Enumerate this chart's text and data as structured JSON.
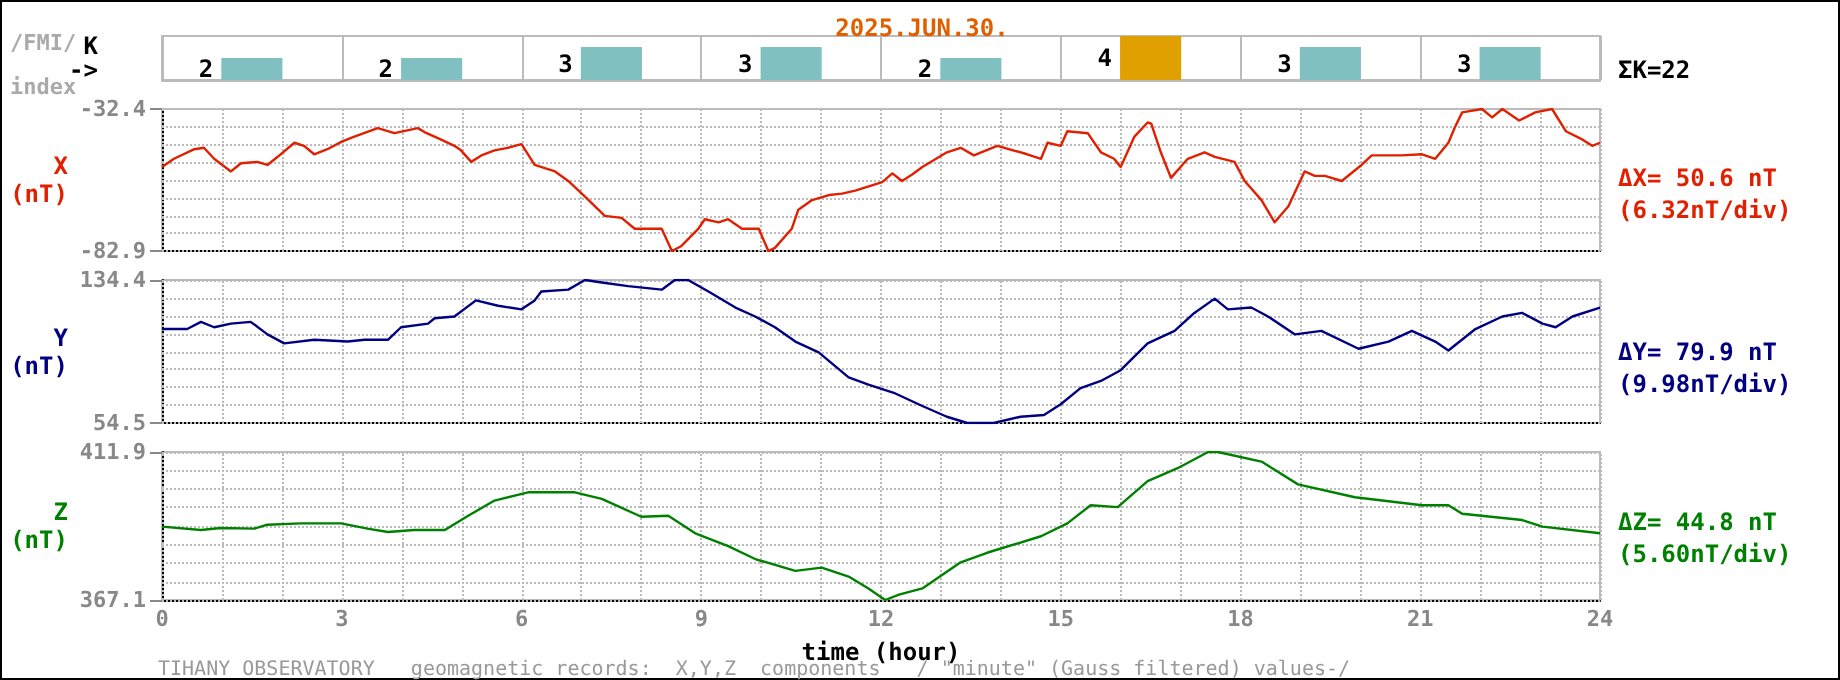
{
  "chart_data": [
    {
      "type": "bar",
      "title": "2025.JUN.30.",
      "ylabel": "K ->",
      "annotations": [
        "/FMI/",
        "index",
        "ΣK=22"
      ],
      "categories": [
        null,
        null,
        null,
        null,
        null,
        null,
        null,
        null
      ],
      "values": [
        2,
        2,
        3,
        3,
        2,
        4,
        3,
        3
      ],
      "colors": [
        "#80c0c0",
        "#80c0c0",
        "#80c0c0",
        "#80c0c0",
        "#80c0c0",
        "#e0a000",
        "#80c0c0",
        "#80c0c0"
      ],
      "data_labels": true,
      "grid": "x",
      "tick_labels": false
    },
    {
      "type": "line",
      "ylabel": "X (nT)",
      "annotations": [
        "ΔX= 50.6 nT",
        "(6.32nT/div)"
      ],
      "xlim": [
        0,
        24
      ],
      "ylim": [
        -82.9,
        -32.4
      ],
      "xticks": [
        0,
        {
          "value": 1,
          "label": null
        },
        {
          "value": 2,
          "label": null
        },
        3,
        {
          "value": 4,
          "label": null
        },
        {
          "value": 5,
          "label": null
        },
        6,
        {
          "value": 7,
          "label": null
        },
        {
          "value": 8,
          "label": null
        },
        9,
        {
          "value": 10,
          "label": null
        },
        {
          "value": 11,
          "label": null
        },
        12,
        {
          "value": 13,
          "label": null
        },
        {
          "value": 14,
          "label": null
        },
        15,
        {
          "value": 16,
          "label": null
        },
        {
          "value": 17,
          "label": null
        },
        18,
        {
          "value": 19,
          "label": null
        },
        {
          "value": 20,
          "label": null
        },
        21,
        {
          "value": 22,
          "label": null
        },
        {
          "value": 23,
          "label": null
        },
        24
      ],
      "yticks": [
        -82.9,
        {
          "value": -76.59,
          "label": null
        },
        {
          "value": -70.28,
          "label": null
        },
        {
          "value": -63.96,
          "label": null
        },
        {
          "value": -57.65,
          "label": null
        },
        {
          "value": -51.34,
          "label": null
        },
        {
          "value": -45.03,
          "label": null
        },
        {
          "value": -38.71,
          "label": null
        },
        -32.4
      ],
      "grid": true,
      "tick_labels": "y",
      "series": [
        {
          "color": "#e02000",
          "x": [
            0,
            0.2,
            0.54,
            0.7,
            0.87,
            1.15,
            1.32,
            1.59,
            1.76,
            1.93,
            2.21,
            2.37,
            2.54,
            2.76,
            3,
            3.21,
            3.6,
            3.88,
            4.27,
            4.38,
            4.66,
            4.88,
            4.99,
            5.16,
            5.33,
            5.55,
            5.77,
            6,
            6.22,
            6.56,
            6.78,
            7.06,
            7.39,
            7.67,
            7.89,
            8.12,
            8.34,
            8.51,
            8.67,
            8.95,
            9.06,
            9.29,
            9.45,
            9.68,
            9.96,
            10.12,
            10.23,
            10.51,
            10.62,
            10.85,
            11.13,
            11.35,
            11.57,
            12.02,
            12.19,
            12.35,
            12.52,
            12.69,
            13.1,
            13.33,
            13.55,
            13.94,
            14.44,
            14.67,
            14.78,
            15,
            15.11,
            15.45,
            15.67,
            15.89,
            16,
            16.23,
            16.45,
            16.51,
            16.67,
            16.84,
            17.12,
            17.4,
            17.57,
            17.9,
            18.07,
            18.35,
            18.57,
            18.8,
            19.07,
            19.24,
            19.41,
            19.69,
            20.02,
            20.19,
            20.69,
            21.03,
            21.25,
            21.47,
            21.58,
            21.7,
            22.03,
            22.2,
            22.37,
            22.65,
            22.92,
            23.2,
            23.43,
            23.71,
            23.87,
            24
          ],
          "values": [
            -53,
            -50.1,
            -46.7,
            -46.2,
            -50.1,
            -54.6,
            -51.7,
            -51.2,
            -52.3,
            -49.4,
            -44.4,
            -45.5,
            -48.5,
            -46.7,
            -44,
            -42.2,
            -39.2,
            -41,
            -39.2,
            -40.6,
            -43.3,
            -45.5,
            -47.1,
            -51.2,
            -48.9,
            -47.1,
            -46.2,
            -44.9,
            -52.3,
            -54.6,
            -58,
            -63.6,
            -70.4,
            -71.1,
            -75,
            -75,
            -75,
            -82.9,
            -81.1,
            -75,
            -71.6,
            -72.7,
            -71.6,
            -75,
            -75,
            -82.9,
            -81.8,
            -75,
            -68.2,
            -64.8,
            -63,
            -62.5,
            -61.4,
            -58.4,
            -55.3,
            -58,
            -55.7,
            -53,
            -47.8,
            -46.2,
            -48.9,
            -45.5,
            -48.5,
            -50.1,
            -44.4,
            -45.5,
            -40.3,
            -41,
            -47.8,
            -50.1,
            -53,
            -42.2,
            -37.2,
            -37.6,
            -47.8,
            -56.9,
            -50.1,
            -47.8,
            -49.4,
            -51.2,
            -58,
            -64.8,
            -72.7,
            -67,
            -54.6,
            -56.2,
            -56.2,
            -58,
            -52.3,
            -48.9,
            -48.9,
            -48.5,
            -50.1,
            -44.4,
            -38.8,
            -33.6,
            -32.4,
            -35.4,
            -32.4,
            -36.5,
            -33.6,
            -32.4,
            -40.3,
            -43.3,
            -45.5,
            -44.4
          ]
        }
      ]
    },
    {
      "type": "line",
      "ylabel": "Y (nT)",
      "annotations": [
        "ΔY= 79.9 nT",
        "(9.98nT/div)"
      ],
      "xlim": [
        0,
        24
      ],
      "ylim": [
        54.5,
        134.4
      ],
      "xticks": [
        0,
        {
          "value": 1,
          "label": null
        },
        {
          "value": 2,
          "label": null
        },
        3,
        {
          "value": 4,
          "label": null
        },
        {
          "value": 5,
          "label": null
        },
        6,
        {
          "value": 7,
          "label": null
        },
        {
          "value": 8,
          "label": null
        },
        9,
        {
          "value": 10,
          "label": null
        },
        {
          "value": 11,
          "label": null
        },
        12,
        {
          "value": 13,
          "label": null
        },
        {
          "value": 14,
          "label": null
        },
        15,
        {
          "value": 16,
          "label": null
        },
        {
          "value": 17,
          "label": null
        },
        18,
        {
          "value": 19,
          "label": null
        },
        {
          "value": 20,
          "label": null
        },
        21,
        {
          "value": 22,
          "label": null
        },
        {
          "value": 23,
          "label": null
        },
        24
      ],
      "yticks": [
        54.5,
        {
          "value": 64.49,
          "label": null
        },
        {
          "value": 74.48,
          "label": null
        },
        {
          "value": 84.46,
          "label": null
        },
        {
          "value": 94.45,
          "label": null
        },
        {
          "value": 104.44,
          "label": null
        },
        {
          "value": 114.43,
          "label": null
        },
        {
          "value": 124.41,
          "label": null
        },
        134.4
      ],
      "grid": true,
      "tick_labels": "y",
      "series": [
        {
          "color": "#000080",
          "x": [
            0,
            0.42,
            0.65,
            0.87,
            1.15,
            1.48,
            1.76,
            2.04,
            2.54,
            3.1,
            3.38,
            3.77,
            3.99,
            4.44,
            4.55,
            4.88,
            5.24,
            5.61,
            6,
            6.22,
            6.33,
            6.78,
            7.06,
            7.34,
            7.78,
            8.34,
            8.56,
            8.78,
            9.12,
            9.57,
            9.9,
            10.23,
            10.57,
            10.96,
            11.46,
            11.79,
            12.24,
            12.69,
            13.1,
            13.44,
            13.88,
            14.33,
            14.72,
            15,
            15.33,
            15.67,
            16,
            16.45,
            16.9,
            17.23,
            17.57,
            17.79,
            18.18,
            18.46,
            18.91,
            19.35,
            19.97,
            20.47,
            20.86,
            21.25,
            21.47,
            21.92,
            22.37,
            22.7,
            23.04,
            23.26,
            23.54,
            24
          ],
          "values": [
            107,
            107,
            111,
            108,
            110,
            111,
            104,
            99,
            101,
            100,
            101,
            101,
            108,
            110,
            113,
            114,
            123,
            120,
            118,
            123,
            128,
            129,
            134.4,
            133,
            131,
            129,
            134.4,
            134.4,
            128,
            119,
            114,
            108,
            100,
            94,
            80,
            76,
            71,
            64,
            58,
            54.5,
            54.5,
            58,
            59,
            65,
            74,
            78,
            84,
            99,
            106,
            116,
            124,
            118,
            119,
            114,
            104,
            106,
            96,
            100,
            106,
            100,
            95,
            107,
            114,
            116,
            110,
            108,
            114,
            119
          ]
        }
      ]
    },
    {
      "type": "line",
      "ylabel": "Z (nT)",
      "xlabel": "time (hour)",
      "annotations": [
        "ΔZ= 44.8 nT",
        "(5.60nT/div)",
        "TIHANY OBSERVATORY   geomagnetic records:  X,Y,Z  components   / \"minute\" (Gauss filtered) values-/"
      ],
      "xlim": [
        0,
        24
      ],
      "ylim": [
        367.1,
        411.9
      ],
      "xticks": [
        0,
        {
          "value": 1,
          "label": null
        },
        {
          "value": 2,
          "label": null
        },
        3,
        {
          "value": 4,
          "label": null
        },
        {
          "value": 5,
          "label": null
        },
        6,
        {
          "value": 7,
          "label": null
        },
        {
          "value": 8,
          "label": null
        },
        9,
        {
          "value": 10,
          "label": null
        },
        {
          "value": 11,
          "label": null
        },
        12,
        {
          "value": 13,
          "label": null
        },
        {
          "value": 14,
          "label": null
        },
        15,
        {
          "value": 16,
          "label": null
        },
        {
          "value": 17,
          "label": null
        },
        18,
        {
          "value": 19,
          "label": null
        },
        {
          "value": 20,
          "label": null
        },
        21,
        {
          "value": 22,
          "label": null
        },
        {
          "value": 23,
          "label": null
        },
        24
      ],
      "yticks": [
        367.1,
        {
          "value": 372.7,
          "label": null
        },
        {
          "value": 378.3,
          "label": null
        },
        {
          "value": 383.9,
          "label": null
        },
        {
          "value": 389.5,
          "label": null
        },
        {
          "value": 395.1,
          "label": null
        },
        {
          "value": 400.7,
          "label": null
        },
        {
          "value": 406.3,
          "label": null
        },
        411.9
      ],
      "grid": true,
      "series": [
        {
          "color": "#008000",
          "x": [
            0,
            0.65,
            0.98,
            1.54,
            1.76,
            2.32,
            2.99,
            3.43,
            3.77,
            4.21,
            4.72,
            5.11,
            5.55,
            6.11,
            6.89,
            7.34,
            8,
            8.45,
            8.9,
            9.45,
            9.9,
            10.57,
            11.01,
            11.46,
            11.79,
            12.07,
            12.3,
            12.69,
            13.33,
            13.77,
            14.67,
            15.11,
            15.5,
            15.95,
            16.45,
            16.95,
            17.46,
            17.62,
            18.35,
            18.96,
            19.91,
            21.03,
            21.47,
            21.7,
            22.7,
            23.04,
            24
          ],
          "values": [
            389.3,
            388.3,
            388.9,
            388.7,
            389.9,
            390.3,
            390.3,
            388.7,
            387.7,
            388.3,
            388.3,
            392.6,
            397.2,
            399.7,
            399.7,
            397.7,
            392.3,
            392.6,
            387.3,
            383.4,
            379.5,
            375.9,
            376.9,
            374.2,
            370.6,
            367.1,
            368.7,
            370.6,
            378.5,
            381.4,
            386.4,
            390.3,
            395.8,
            395.2,
            403.1,
            407,
            411.9,
            411.9,
            409,
            402.1,
            398.2,
            395.8,
            395.8,
            393.2,
            391.3,
            389.3,
            387.3
          ]
        }
      ]
    }
  ]
}
